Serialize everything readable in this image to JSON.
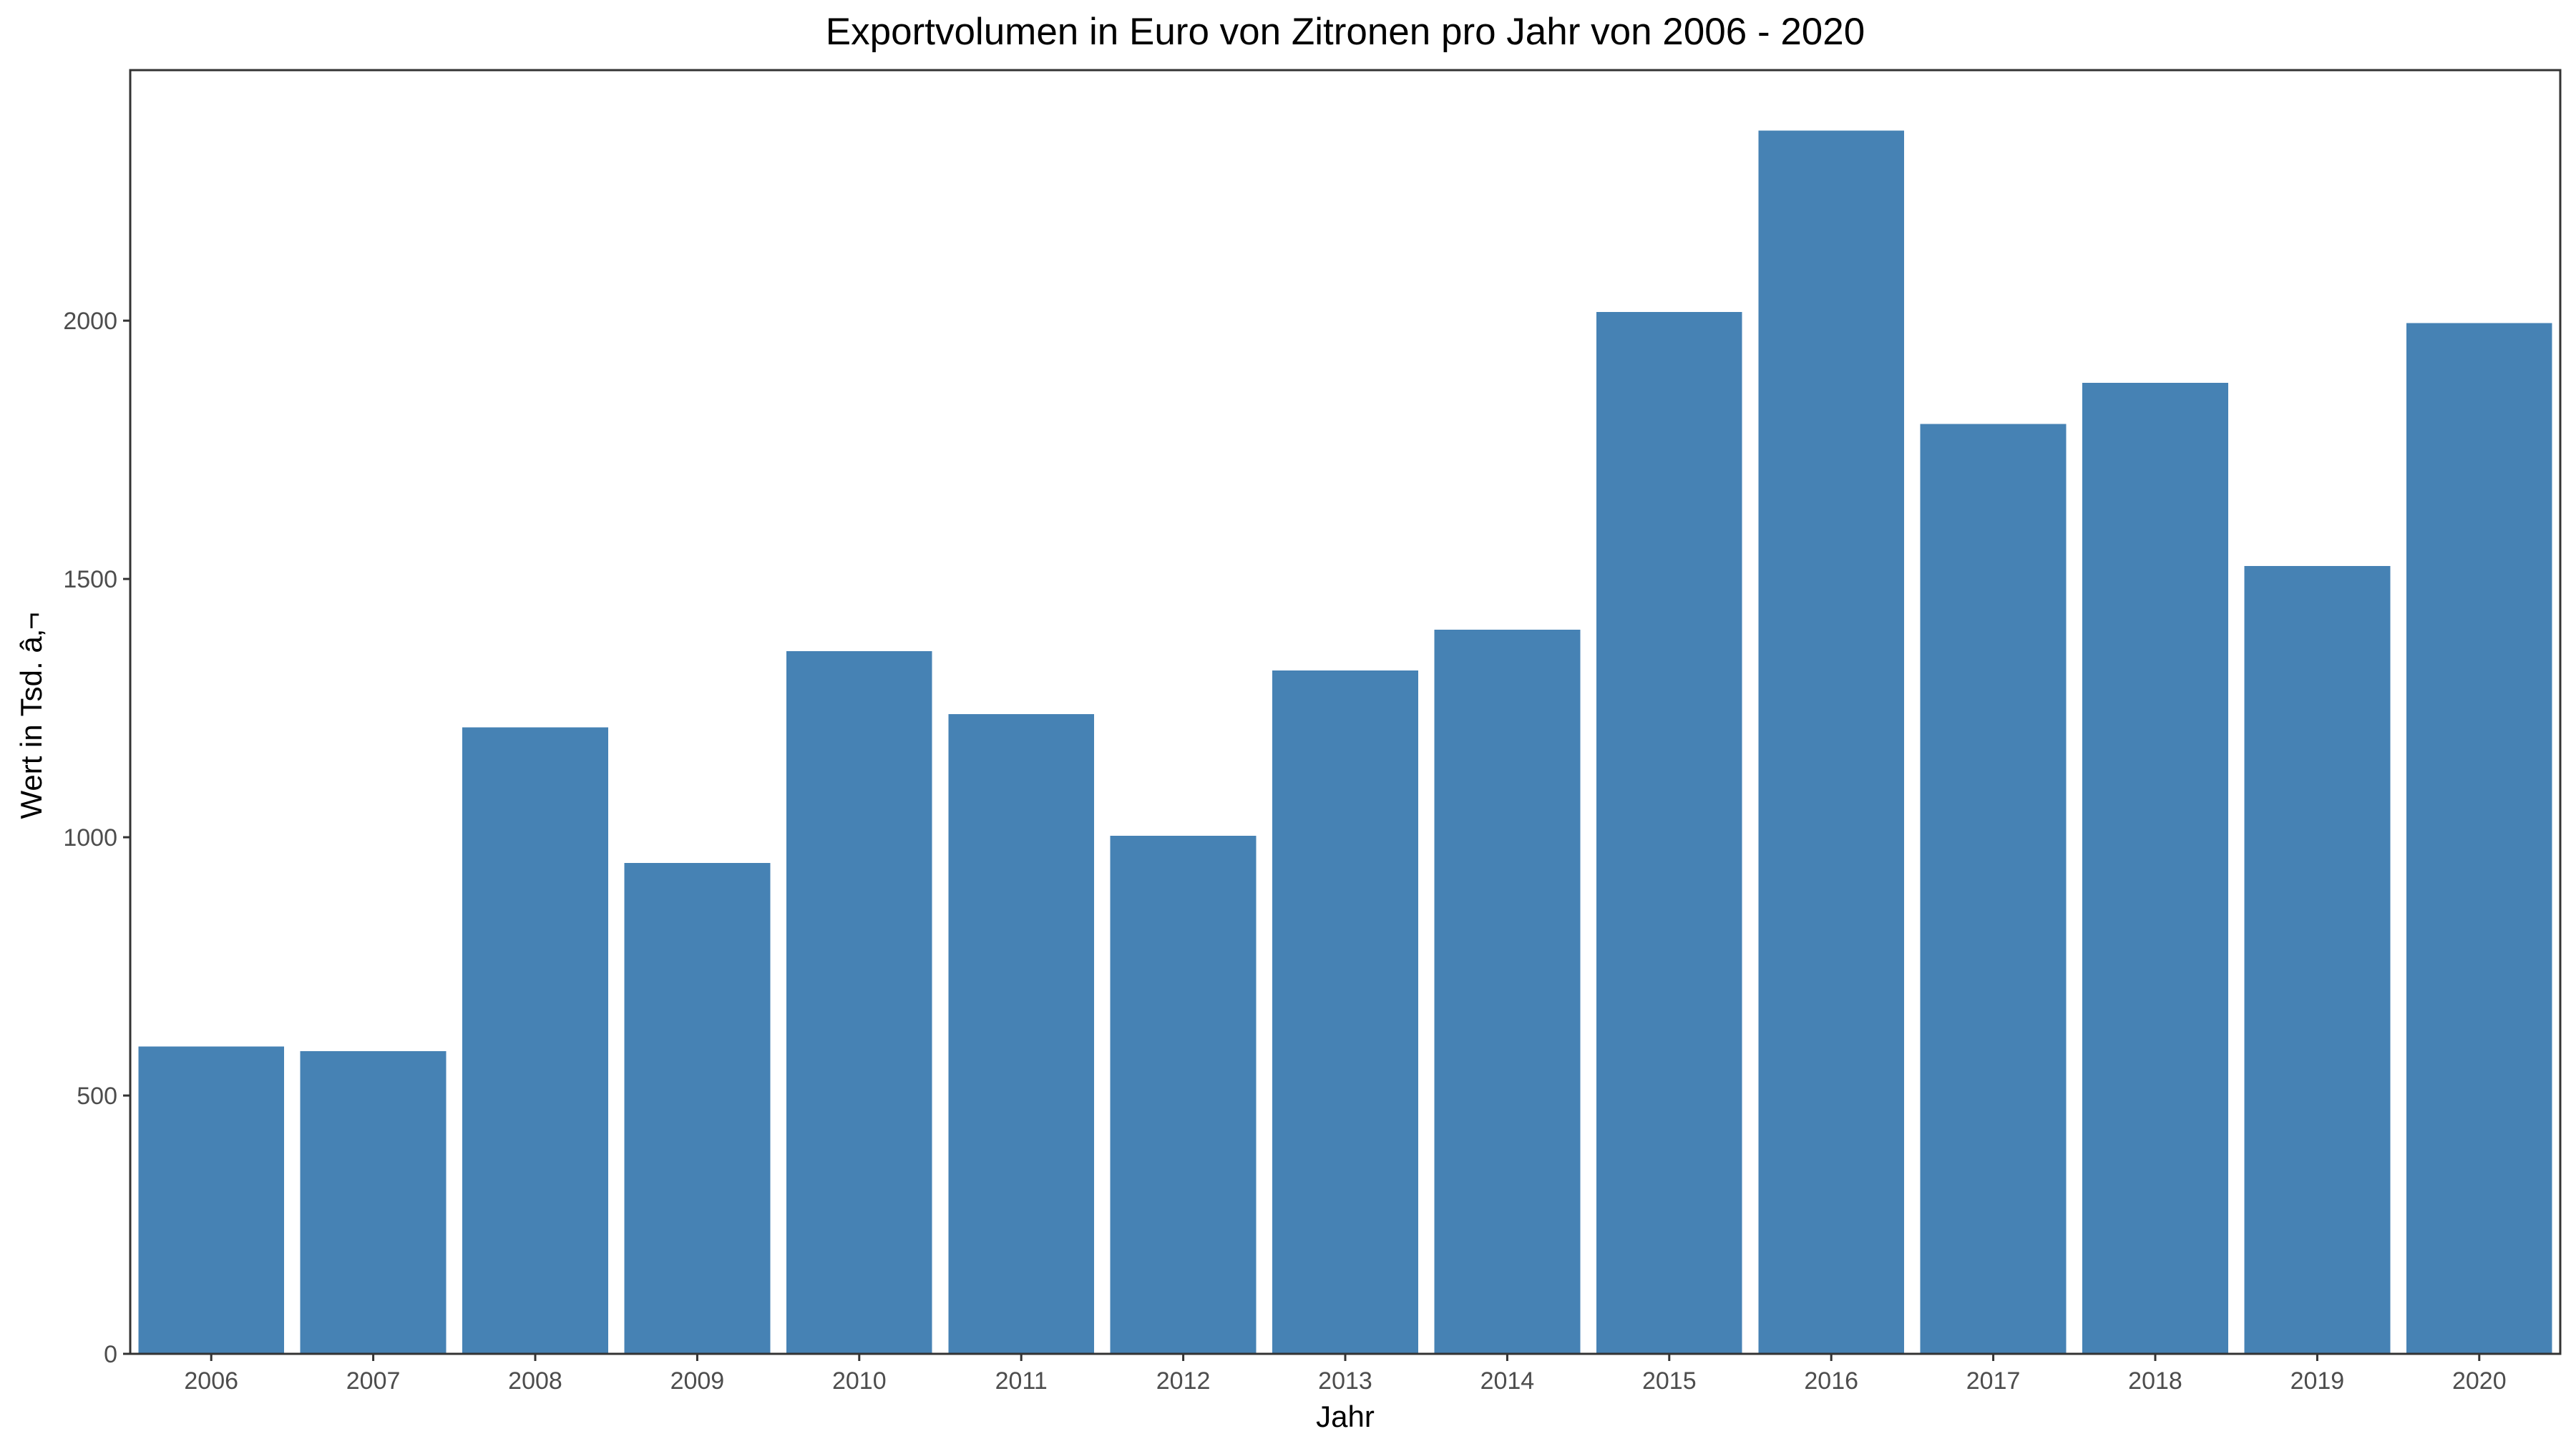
{
  "chart_data": {
    "type": "bar",
    "title": "Exportvolumen in Euro von Zitronen pro Jahr von 2006 - 2020",
    "xlabel": "Jahr",
    "ylabel": "Wert in Tsd. â‚¬",
    "categories": [
      "2006",
      "2007",
      "2008",
      "2009",
      "2010",
      "2011",
      "2012",
      "2013",
      "2014",
      "2015",
      "2016",
      "2017",
      "2018",
      "2019",
      "2020"
    ],
    "values": [
      595,
      586,
      1213,
      950,
      1360,
      1238,
      1003,
      1323,
      1402,
      2017,
      2368,
      1800,
      1880,
      1525,
      1995
    ],
    "yticks": [
      0,
      500,
      1000,
      1500,
      2000
    ],
    "ylim": [
      0,
      2485
    ],
    "grid": false,
    "legend": "none",
    "bar_color": "#4682B4"
  }
}
